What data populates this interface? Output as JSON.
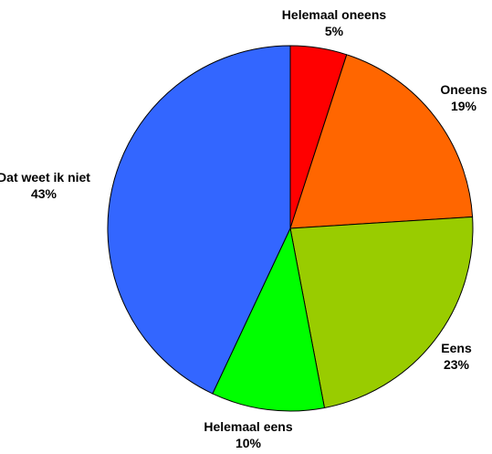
{
  "chart_data": {
    "type": "pie",
    "title": "",
    "slices": [
      {
        "label": "Helemaal oneens",
        "value": 5,
        "value_label": "5%",
        "color": "#ff0000"
      },
      {
        "label": "Oneens",
        "value": 19,
        "value_label": "19%",
        "color": "#ff6600"
      },
      {
        "label": "Eens",
        "value": 23,
        "value_label": "23%",
        "color": "#99cc00"
      },
      {
        "label": "Helemaal eens",
        "value": 10,
        "value_label": "10%",
        "color": "#00ff00"
      },
      {
        "label": "Dat weet ik niet",
        "value": 43,
        "value_label": "43%",
        "color": "#3366ff"
      }
    ],
    "start_angle_deg": 0,
    "direction": "clockwise",
    "legend": "none"
  }
}
